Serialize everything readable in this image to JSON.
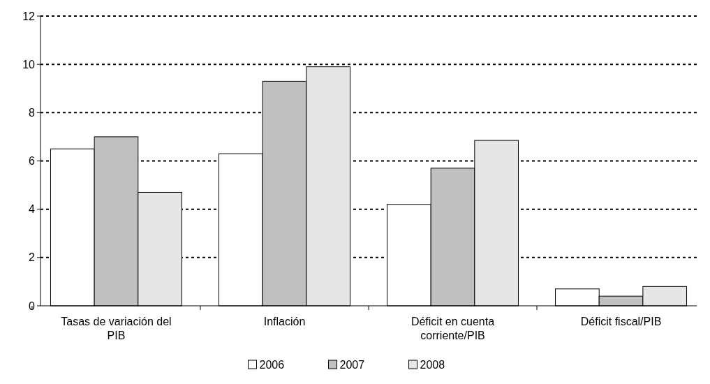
{
  "chart_data": {
    "type": "bar",
    "categories": [
      "Tasas de variación del PIB",
      "Inflación",
      "Déficit en cuenta corriente/PIB",
      "Déficit fiscal/PIB"
    ],
    "series": [
      {
        "name": "2006",
        "color": "#ffffff",
        "values": [
          6.5,
          6.3,
          4.2,
          0.7
        ]
      },
      {
        "name": "2007",
        "color": "#c0c0c0",
        "values": [
          7.0,
          9.3,
          5.7,
          0.4
        ]
      },
      {
        "name": "2008",
        "color": "#e6e6e6",
        "values": [
          4.7,
          9.9,
          6.85,
          0.8
        ]
      }
    ],
    "ylim": [
      0,
      12
    ],
    "yticks": [
      0,
      2,
      4,
      6,
      8,
      10,
      12
    ],
    "grid": "y",
    "legend": "bottom"
  }
}
